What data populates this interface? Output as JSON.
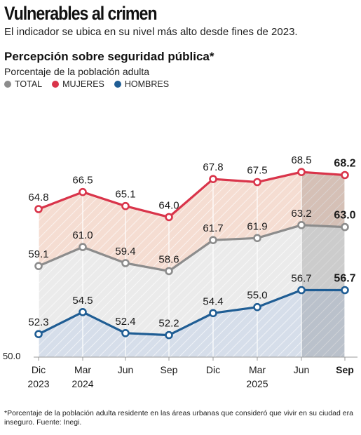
{
  "headline": "Vulnerables al crimen",
  "subhead": "El indicador se ubica en su nivel más alto desde fines de 2023.",
  "footnote": "*Porcentaje de la población adulta residente en las áreas urbanas que consideró que vivir en su ciudad era inseguro. Fuente: Inegi.",
  "chart_data": {
    "type": "line",
    "title": "Percepción sobre seguridad pública*",
    "subtitle": "Porcentaje de la población adulta",
    "ylim": [
      50,
      70
    ],
    "y_baseline_label": "50.0",
    "categories": [
      {
        "month": "Dic",
        "year": "2023"
      },
      {
        "month": "Mar",
        "year": "2024"
      },
      {
        "month": "Jun",
        "year": ""
      },
      {
        "month": "Sep",
        "year": ""
      },
      {
        "month": "Dic",
        "year": ""
      },
      {
        "month": "Mar",
        "year": "2025"
      },
      {
        "month": "Jun",
        "year": ""
      },
      {
        "month": "Sep",
        "year": ""
      }
    ],
    "highlight_last": true,
    "legend_position": "top-left",
    "series": [
      {
        "name": "TOTAL",
        "color": "#8c8c8c",
        "fill": "#ebebeb",
        "values": [
          59.1,
          61.0,
          59.4,
          58.6,
          61.7,
          61.9,
          63.2,
          63.0
        ],
        "labels": [
          "59.1",
          "61.0",
          "59.4",
          "58.6",
          "61.7",
          "61.9",
          "63.2",
          "63.0"
        ]
      },
      {
        "name": "MUJERES",
        "color": "#d9344a",
        "fill": "#f5ddd2",
        "values": [
          64.8,
          66.5,
          65.1,
          64.0,
          67.8,
          67.5,
          68.5,
          68.2
        ],
        "labels": [
          "64.8",
          "66.5",
          "65.1",
          "64.0",
          "67.8",
          "67.5",
          "68.5",
          "68.2"
        ]
      },
      {
        "name": "HOMBRES",
        "color": "#1f5d94",
        "fill": "#d6deea",
        "values": [
          52.3,
          54.5,
          52.4,
          52.2,
          54.4,
          55.0,
          56.7,
          56.7
        ],
        "labels": [
          "52.3",
          "54.5",
          "52.4",
          "52.2",
          "54.4",
          "55.0",
          "56.7",
          "56.7"
        ]
      }
    ]
  }
}
